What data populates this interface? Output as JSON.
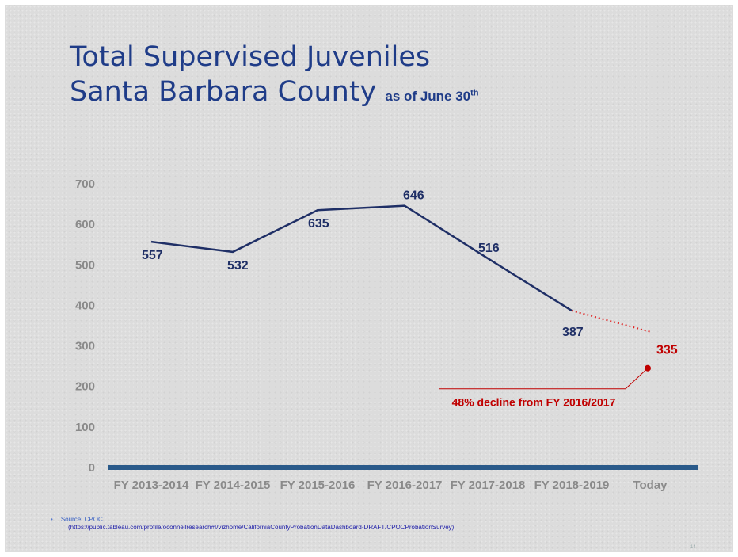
{
  "title": {
    "line1": "Total Supervised Juveniles",
    "line2": "Santa Barbara County",
    "subtitle": "as of June 30",
    "subtitle_sup": "th"
  },
  "chart_data": {
    "type": "line",
    "categories": [
      "FY 2013-2014",
      "FY 2014-2015",
      "FY 2015-2016",
      "FY 2016-2017",
      "FY 2017-2018",
      "FY 2018-2019",
      "Today"
    ],
    "series": [
      {
        "values": [
          557,
          532,
          635,
          646,
          516,
          387,
          null
        ],
        "color": "#1f2f66",
        "style": "solid"
      },
      {
        "values": [
          null,
          null,
          null,
          null,
          null,
          387,
          335
        ],
        "color": "#e02020",
        "style": "dotted"
      }
    ],
    "data_labels": [
      "557",
      "532",
      "635",
      "646",
      "516",
      "387",
      "335"
    ],
    "ylim": [
      0,
      700
    ],
    "yticks": [
      0,
      100,
      200,
      300,
      400,
      500,
      600,
      700
    ],
    "grid": false,
    "annotation": {
      "text": "48% decline from FY 2016/2017",
      "color": "#c00000",
      "marker_value": 245
    },
    "baseline_color": "#2a5a8a"
  },
  "source": {
    "label": "Source: CPOC",
    "url": "(https://public.tableau.com/profile/oconnellresearch#!/vizhome/CaliforniaCountyProbationDataDashboard-DRAFT/CPOCProbationSurvey)"
  },
  "slide_number": "14"
}
